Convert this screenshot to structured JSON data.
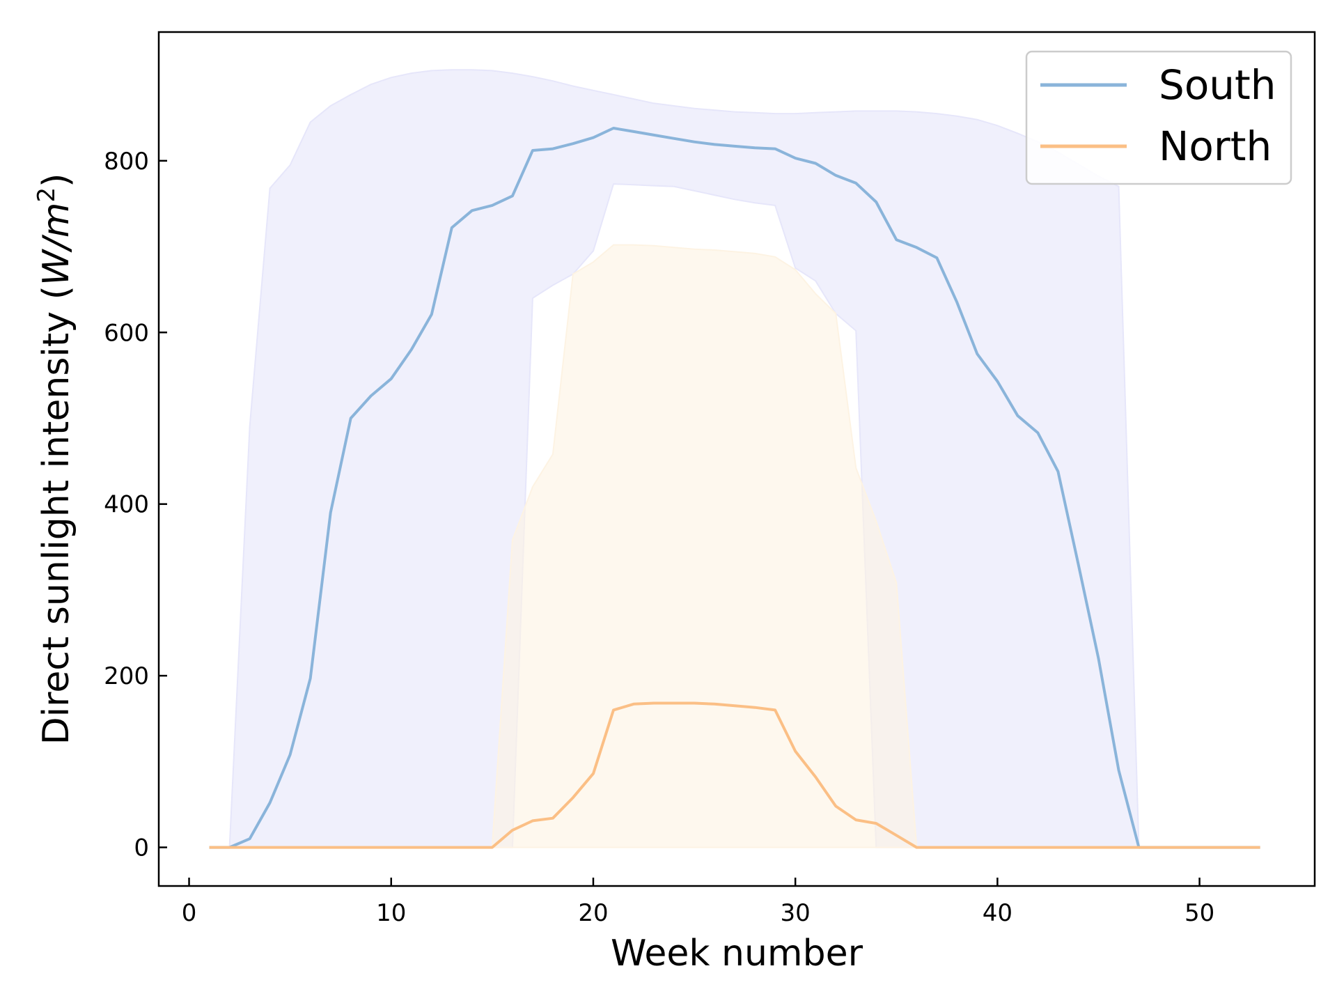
{
  "chart_data": {
    "type": "line",
    "title": "",
    "xlabel": "Week number",
    "ylabel_main": "Direct sunlight intensity (",
    "ylabel_unit": "W/m",
    "ylabel_sup": "2",
    "ylabel_close": ")",
    "xlim": [
      -1.5,
      55.7
    ],
    "ylim": [
      -45,
      950
    ],
    "xticks": [
      0,
      10,
      20,
      30,
      40,
      50
    ],
    "xtick_labels": [
      "0",
      "10",
      "20",
      "30",
      "40",
      "50"
    ],
    "yticks": [
      0,
      200,
      400,
      600,
      800
    ],
    "ytick_labels": [
      "0",
      "200",
      "400",
      "600",
      "800"
    ],
    "grid": false,
    "legend_position": "top-right",
    "series": [
      {
        "name": "South",
        "color": "#8ab4da",
        "band_color": "#e6e6fa",
        "x": [
          1,
          2,
          3,
          4,
          5,
          6,
          7,
          8,
          9,
          10,
          11,
          12,
          13,
          14,
          15,
          16,
          17,
          18,
          19,
          20,
          21,
          22,
          23,
          24,
          25,
          26,
          27,
          28,
          29,
          30,
          31,
          32,
          33,
          34,
          35,
          36,
          37,
          38,
          39,
          40,
          41,
          42,
          43,
          44,
          45,
          46,
          47,
          48,
          49,
          50,
          51,
          52,
          53
        ],
        "values": [
          0,
          0,
          10,
          52,
          108,
          197,
          390,
          500,
          526,
          546,
          580,
          621,
          722,
          742,
          748,
          759,
          812,
          814,
          820,
          827,
          838,
          834,
          830,
          826,
          822,
          819,
          817,
          815,
          814,
          803,
          797,
          783,
          774,
          752,
          708,
          699,
          687,
          635,
          575,
          543,
          503,
          483,
          438,
          330,
          220,
          90,
          0,
          0,
          0,
          0,
          0,
          0,
          0
        ],
        "band_upper": [
          0,
          0,
          490,
          768,
          795,
          845,
          864,
          877,
          889,
          897,
          902,
          905,
          906,
          906,
          905,
          902,
          898,
          893,
          887,
          882,
          877,
          872,
          867,
          864,
          861,
          859,
          857,
          856,
          855,
          855,
          856,
          857,
          858,
          858,
          858,
          857,
          855,
          852,
          848,
          841,
          832,
          822,
          810,
          796,
          782,
          770,
          0,
          0,
          0,
          0,
          0,
          0,
          0
        ],
        "band_lower": [
          0,
          0,
          0,
          0,
          0,
          0,
          0,
          0,
          0,
          0,
          0,
          0,
          0,
          0,
          0,
          0,
          640,
          655,
          668,
          695,
          773,
          772,
          771,
          770,
          765,
          760,
          755,
          751,
          748,
          675,
          660,
          622,
          602,
          0,
          0,
          0,
          0,
          0,
          0,
          0,
          0,
          0,
          0,
          0,
          0,
          0,
          0,
          0,
          0,
          0,
          0,
          0,
          0
        ]
      },
      {
        "name": "North",
        "color": "#fbbf85",
        "band_color": "#fdf3e3",
        "x": [
          1,
          2,
          3,
          4,
          5,
          6,
          7,
          8,
          9,
          10,
          11,
          12,
          13,
          14,
          15,
          16,
          17,
          18,
          19,
          20,
          21,
          22,
          23,
          24,
          25,
          26,
          27,
          28,
          29,
          30,
          31,
          32,
          33,
          34,
          35,
          36,
          37,
          38,
          39,
          40,
          41,
          42,
          43,
          44,
          45,
          46,
          47,
          48,
          49,
          50,
          51,
          52,
          53
        ],
        "values": [
          0,
          0,
          0,
          0,
          0,
          0,
          0,
          0,
          0,
          0,
          0,
          0,
          0,
          0,
          0,
          20,
          31,
          34,
          58,
          86,
          160,
          167,
          168,
          168,
          168,
          167,
          165,
          163,
          160,
          112,
          82,
          48,
          32,
          28,
          14,
          0,
          0,
          0,
          0,
          0,
          0,
          0,
          0,
          0,
          0,
          0,
          0,
          0,
          0,
          0,
          0,
          0,
          0
        ],
        "band_upper": [
          0,
          0,
          0,
          0,
          0,
          0,
          0,
          0,
          0,
          0,
          0,
          0,
          0,
          0,
          0,
          358,
          420,
          458,
          668,
          682,
          702,
          702,
          701,
          699,
          697,
          696,
          694,
          692,
          688,
          673,
          645,
          622,
          442,
          380,
          308,
          0,
          0,
          0,
          0,
          0,
          0,
          0,
          0,
          0,
          0,
          0,
          0,
          0,
          0,
          0,
          0,
          0,
          0
        ],
        "band_lower": [
          0,
          0,
          0,
          0,
          0,
          0,
          0,
          0,
          0,
          0,
          0,
          0,
          0,
          0,
          0,
          0,
          0,
          0,
          0,
          0,
          0,
          0,
          0,
          0,
          0,
          0,
          0,
          0,
          0,
          0,
          0,
          0,
          0,
          0,
          0,
          0,
          0,
          0,
          0,
          0,
          0,
          0,
          0,
          0,
          0,
          0,
          0,
          0,
          0,
          0,
          0,
          0,
          0
        ]
      }
    ]
  }
}
